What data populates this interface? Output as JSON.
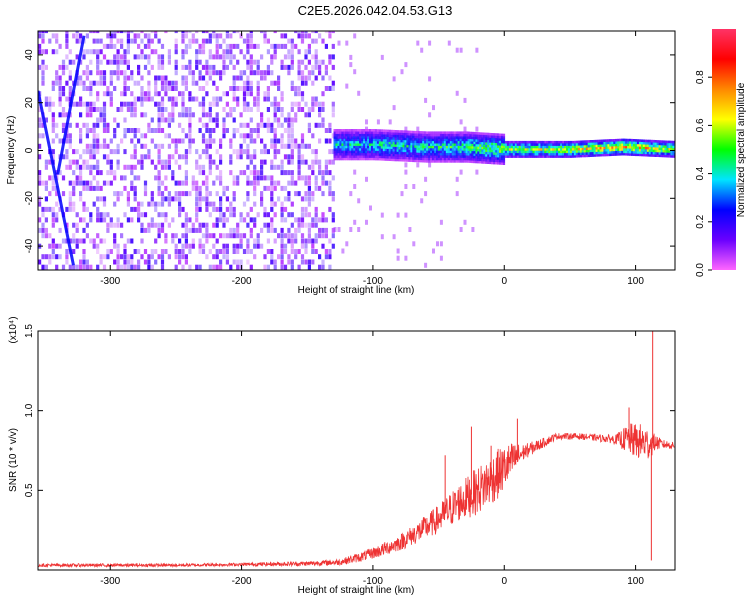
{
  "title": "C2E5.2026.042.04.53.G13",
  "chart_data": [
    {
      "type": "heatmap",
      "xlabel": "Height of straight line (km)",
      "ylabel": "Frequency (Hz)",
      "xlim": [
        -355,
        130
      ],
      "ylim": [
        -50,
        50
      ],
      "xticks": [
        -300,
        -200,
        -100,
        0,
        100
      ],
      "xtick_labels": [
        "-300",
        "-200",
        "-100",
        "0",
        "100"
      ],
      "yticks": [
        -40,
        -20,
        0,
        20,
        40
      ],
      "ytick_labels": [
        "-40",
        "-20",
        "0",
        "20",
        "40"
      ],
      "colorbar": {
        "label": "Normalized spectral amplitude",
        "range": [
          0,
          1
        ],
        "ticks": [
          0.0,
          0.2,
          0.4,
          0.6,
          0.8
        ],
        "tick_labels": [
          "0.0",
          "0.2",
          "0.4",
          "0.6",
          "0.8"
        ],
        "colormap": [
          "#ff66ff",
          "#6a00ff",
          "#0000ff",
          "#00e5ff",
          "#00ff00",
          "#ffff00",
          "#ff8800",
          "#ff0000",
          "#ff3366"
        ]
      },
      "noise_region": {
        "x": [
          -355,
          -130
        ],
        "amplitude": 0.15
      },
      "signal_track": [
        {
          "x": -130,
          "freq": 2,
          "amplitude": 0.4
        },
        {
          "x": -100,
          "freq": 2,
          "amplitude": 0.45
        },
        {
          "x": -60,
          "freq": 1,
          "amplitude": 0.45
        },
        {
          "x": -30,
          "freq": 1,
          "amplitude": 0.5
        },
        {
          "x": 0,
          "freq": 0,
          "amplitude": 0.6
        },
        {
          "x": 50,
          "freq": 0,
          "amplitude": 0.65
        },
        {
          "x": 90,
          "freq": 1,
          "amplitude": 0.75
        },
        {
          "x": 130,
          "freq": 0,
          "amplitude": 0.65
        }
      ],
      "doppler_streaks": [
        {
          "x": [
            -355,
            -328
          ],
          "freq": [
            25,
            -48
          ]
        },
        {
          "x": [
            -320,
            -340
          ],
          "freq": [
            48,
            -10
          ]
        }
      ]
    },
    {
      "type": "line",
      "xlabel": "Height of straight line (km)",
      "ylabel": "SNR (10 * v/v)",
      "yscale_note": "(x10⁴)",
      "xlim": [
        -355,
        130
      ],
      "ylim": [
        0,
        1.5
      ],
      "xticks": [
        -300,
        -200,
        -100,
        0,
        100
      ],
      "xtick_labels": [
        "-300",
        "-200",
        "-100",
        "0",
        "100"
      ],
      "yticks": [
        0.5,
        1.0,
        1.5
      ],
      "ytick_labels": [
        "0.5",
        "1.0",
        "1.5"
      ],
      "color": "#ee3333",
      "series": [
        {
          "x": [
            -355,
            -300,
            -250,
            -200,
            -150,
            -125,
            -110,
            -95,
            -80,
            -65,
            -50,
            -35,
            -20,
            -5,
            5,
            15,
            30,
            40,
            55,
            70,
            85,
            95,
            105,
            110,
            115,
            120,
            130
          ],
          "values": [
            0.03,
            0.03,
            0.03,
            0.035,
            0.04,
            0.05,
            0.08,
            0.12,
            0.17,
            0.24,
            0.32,
            0.42,
            0.5,
            0.6,
            0.68,
            0.74,
            0.8,
            0.84,
            0.84,
            0.83,
            0.82,
            0.82,
            0.8,
            0.79,
            0.8,
            0.79,
            0.78
          ],
          "noise": [
            0.01,
            0.01,
            0.01,
            0.01,
            0.015,
            0.02,
            0.03,
            0.04,
            0.05,
            0.07,
            0.09,
            0.12,
            0.15,
            0.16,
            0.12,
            0.05,
            0.03,
            0.02,
            0.02,
            0.02,
            0.03,
            0.1,
            0.12,
            0.1,
            0.05,
            0.03,
            0.02
          ]
        }
      ],
      "spikes": [
        {
          "x": 113,
          "y": 1.55
        },
        {
          "x": 112,
          "y": 0.06
        },
        {
          "x": 95,
          "y": 1.02
        },
        {
          "x": 10,
          "y": 0.95
        },
        {
          "x": -25,
          "y": 0.9
        },
        {
          "x": -45,
          "y": 0.72
        },
        {
          "x": -10,
          "y": 0.78
        }
      ]
    }
  ]
}
